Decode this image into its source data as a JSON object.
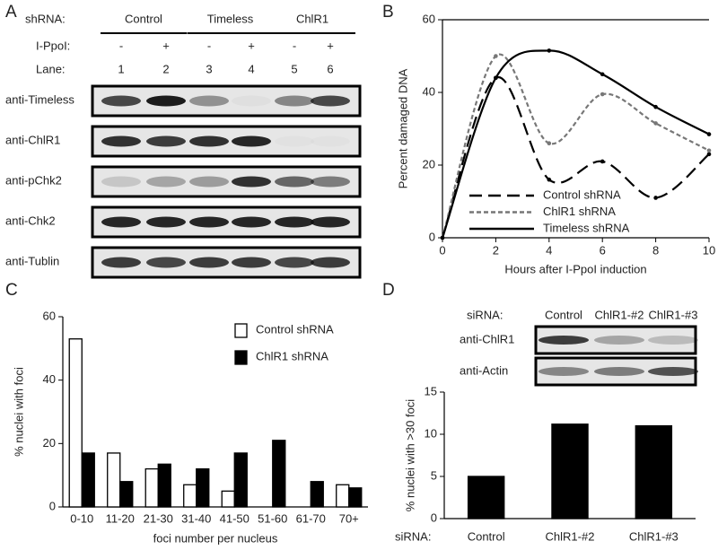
{
  "panel_labels": [
    "A",
    "B",
    "C",
    "D"
  ],
  "blot_a": {
    "shrna_label": "shRNA:",
    "groups": [
      "Control",
      "Timeless",
      "ChlR1"
    ],
    "ippoi_label": "I-PpoI:",
    "treatments": [
      "-",
      "+",
      "-",
      "+",
      "-",
      "+"
    ],
    "lane_label": "Lane:",
    "lanes": [
      "1",
      "2",
      "3",
      "4",
      "5",
      "6"
    ],
    "rows": [
      "anti-Timeless",
      "anti-ChlR1",
      "anti-pChk2",
      "anti-Chk2",
      "anti-Tublin"
    ]
  },
  "blot_d": {
    "sirna_label": "siRNA:",
    "lanes": [
      "Control",
      "ChlR1-#2",
      "ChlR1-#3"
    ],
    "rows": [
      "anti-ChlR1",
      "anti-Actin"
    ]
  },
  "chart_data": [
    {
      "type": "line",
      "x_label": "Hours after I-PpoI induction",
      "y_label": "Percent damaged DNA",
      "x": [
        0,
        2,
        4,
        6,
        8,
        10
      ],
      "xlim": [
        0,
        10
      ],
      "xticks": [
        0,
        2,
        4,
        6,
        8,
        10
      ],
      "ylim": [
        0,
        60
      ],
      "yticks": [
        0,
        20,
        40,
        60
      ],
      "legend": "lower left",
      "markers": true,
      "series": [
        {
          "name": "Control shRNA",
          "color": "#000000",
          "linestyle": "long-dash",
          "values": [
            0,
            44,
            16,
            21,
            11,
            23
          ]
        },
        {
          "name": "ChlR1 shRNA",
          "color": "#777777",
          "linestyle": "short-dash",
          "values": [
            0,
            50,
            26,
            39.5,
            31.5,
            24
          ]
        },
        {
          "name": "Timeless shRNA",
          "color": "#000000",
          "linestyle": "solid",
          "values": [
            0,
            44,
            51.5,
            45,
            36,
            28.5
          ]
        }
      ]
    },
    {
      "type": "bar",
      "x_label": "foci number per nucleus",
      "y_label": "% nuclei with foci",
      "categories": [
        "0-10",
        "11-20",
        "21-30",
        "31-40",
        "41-50",
        "51-60",
        "61-70",
        "70+"
      ],
      "ylim": [
        0,
        60
      ],
      "yticks": [
        0,
        20,
        40,
        60
      ],
      "legend": "upper right",
      "edgecolor": "#000000",
      "series": [
        {
          "name": "Control shRNA",
          "color": "#ffffff",
          "values": [
            53,
            17,
            12,
            7,
            5,
            0,
            0,
            7
          ]
        },
        {
          "name": "ChlR1 shRNA",
          "color": "#000000",
          "values": [
            17,
            8,
            13.5,
            12,
            17,
            21,
            8,
            6
          ]
        }
      ]
    },
    {
      "type": "bar",
      "x_label": "siRNA:",
      "y_label": "% nuclei with >30 foci",
      "categories": [
        "Control",
        "ChlR1-#2",
        "ChlR1-#3"
      ],
      "values": [
        5,
        11.2,
        11
      ],
      "color": "#000000",
      "ylim": [
        0,
        15
      ],
      "yticks": [
        0,
        5,
        10,
        15
      ]
    }
  ]
}
